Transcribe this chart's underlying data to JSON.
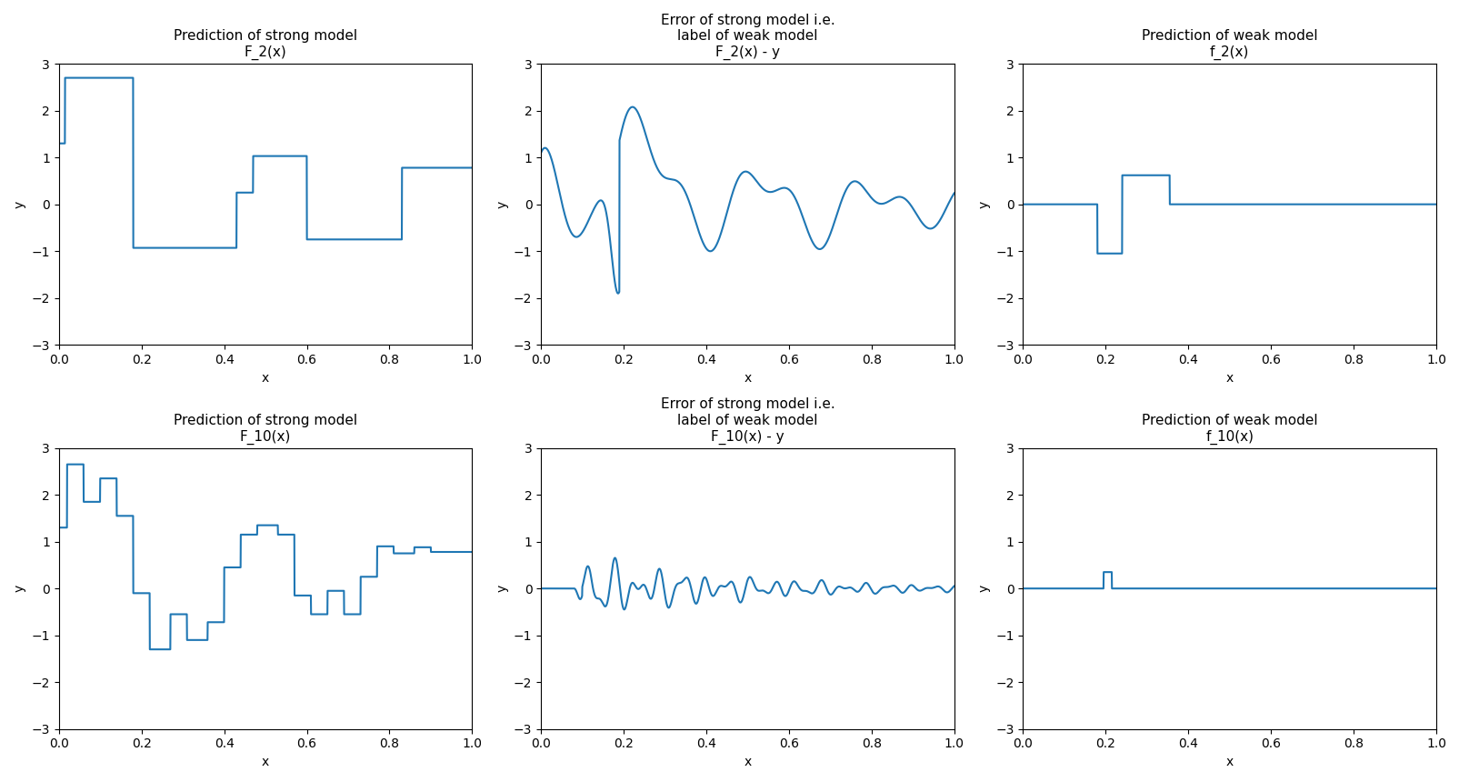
{
  "title_strong_2": "Prediction of strong model\nF_2(x)",
  "title_error_2": "Error of strong model i.e.\nlabel of weak model\nF_2(x) - y",
  "title_weak_2": "Prediction of weak model\nf_2(x)",
  "title_strong_10": "Prediction of strong model\nF_10(x)",
  "title_error_10": "Error of strong model i.e.\nlabel of weak model\nF_10(x) - y",
  "title_weak_10": "Prediction of weak model\nf_10(x)",
  "xlabel": "x",
  "ylabel": "y",
  "ylim": [
    -3,
    3
  ],
  "xlim": [
    0.0,
    1.0
  ],
  "line_color": "#1f77b4",
  "line_width": 1.5,
  "n_points": 2000
}
